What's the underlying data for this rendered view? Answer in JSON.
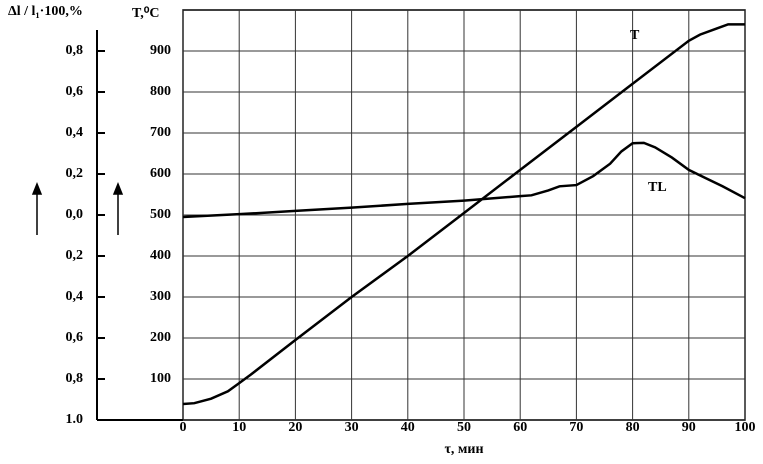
{
  "chart_data": {
    "type": "line",
    "y_label": "T,⁰C",
    "y2_label": "Δl / l₁·100,%",
    "x_label": "τ, мин",
    "xlim": [
      0,
      100
    ],
    "xticks": [
      0,
      10,
      20,
      30,
      40,
      50,
      60,
      70,
      80,
      90,
      100
    ],
    "ylim": [
      0,
      1000
    ],
    "yticks": [
      100,
      200,
      300,
      400,
      500,
      600,
      700,
      800,
      900
    ],
    "y2lim": [
      -1,
      1
    ],
    "y2ticks": [
      {
        "value": 0.8,
        "label": "0,8"
      },
      {
        "value": 0.6,
        "label": "0,6"
      },
      {
        "value": 0.4,
        "label": "0,4"
      },
      {
        "value": 0.2,
        "label": "0,2"
      },
      {
        "value": 0,
        "label": "0,0"
      },
      {
        "value": -0.2,
        "label": "0,2"
      },
      {
        "value": -0.4,
        "label": "0,4"
      },
      {
        "value": -0.6,
        "label": "0,6"
      },
      {
        "value": -0.8,
        "label": "0,8"
      },
      {
        "value": -1,
        "label": "1.0"
      }
    ],
    "grid": true,
    "series": [
      {
        "name": "T",
        "color": "#000000",
        "x": [
          0,
          2,
          5,
          8,
          10,
          12,
          20,
          30,
          40,
          50,
          60,
          70,
          80,
          90,
          92,
          95,
          97,
          100
        ],
        "values": [
          39,
          41,
          52,
          70,
          90,
          110,
          195,
          300,
          400,
          505,
          610,
          715,
          820,
          925,
          940,
          955,
          965,
          965
        ]
      },
      {
        "name": "TL",
        "color": "#000000",
        "x": [
          0,
          10,
          20,
          30,
          40,
          50,
          60,
          62,
          65,
          67,
          70,
          73,
          76,
          78,
          80,
          82,
          84,
          87,
          90,
          93,
          96,
          100
        ],
        "values": [
          495,
          502,
          510,
          518,
          527,
          535,
          546,
          548,
          560,
          570,
          573,
          595,
          625,
          655,
          675,
          676,
          665,
          640,
          610,
          590,
          570,
          541
        ]
      }
    ]
  }
}
